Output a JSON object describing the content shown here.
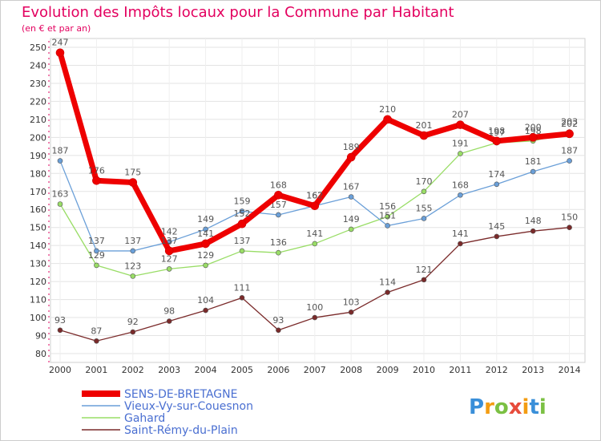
{
  "chart_data": {
    "type": "line",
    "title": "Evolution des Impôts locaux pour la Commune par Habitant",
    "subtitle": "(en € et par an)",
    "xlabel": "",
    "ylabel": "",
    "ylim": [
      80,
      250
    ],
    "yticks": [
      80,
      90,
      100,
      110,
      120,
      130,
      140,
      150,
      160,
      170,
      180,
      190,
      200,
      210,
      220,
      230,
      240,
      250
    ],
    "x": [
      "2000",
      "2001",
      "2002",
      "2003",
      "2004",
      "2005",
      "2006",
      "2007",
      "2008",
      "2009",
      "2010",
      "2011",
      "2012",
      "2013",
      "2014"
    ],
    "series": [
      {
        "name": "Saint-Rémy-du-Plain",
        "color": "#7a2a2a",
        "values": [
          93,
          87,
          92,
          98,
          104,
          111,
          93,
          100,
          103,
          114,
          121,
          141,
          145,
          148,
          150
        ]
      },
      {
        "name": "Gahard",
        "color": "#99dd66",
        "values": [
          163,
          129,
          123,
          127,
          129,
          137,
          136,
          141,
          149,
          156,
          170,
          191,
          197,
          198,
          203
        ]
      },
      {
        "name": "Vieux-Vy-sur-Couesnon",
        "color": "#6a9fd8",
        "values": [
          187,
          137,
          137,
          142,
          149,
          159,
          157,
          162,
          167,
          151,
          155,
          168,
          174,
          181,
          187
        ]
      },
      {
        "name": "SENS-DE-BRETAGNE",
        "color": "#ee0000",
        "values": [
          247,
          176,
          175,
          137,
          141,
          152,
          168,
          162,
          189,
          210,
          201,
          207,
          198,
          200,
          202
        ]
      }
    ],
    "legend": [
      "SENS-DE-BRETAGNE",
      "Vieux-Vy-sur-Couesnon",
      "Gahard",
      "Saint-Rémy-du-Plain"
    ],
    "legend_position": "bottom-left",
    "grid": true
  },
  "logo": {
    "parts": [
      "Pro",
      "x",
      "iti"
    ],
    "colors": [
      "#3a8fd9",
      "#f39c12",
      "#7bc043",
      "#e74c3c"
    ]
  }
}
